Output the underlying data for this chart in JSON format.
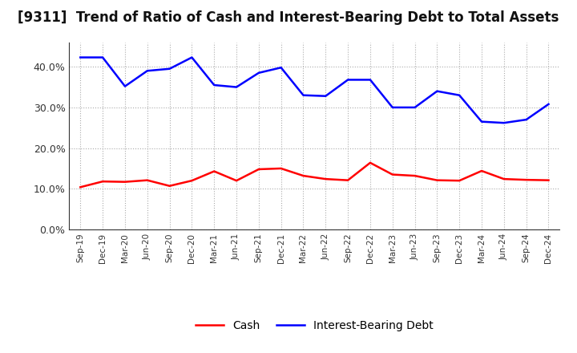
{
  "title": "[9311]  Trend of Ratio of Cash and Interest-Bearing Debt to Total Assets",
  "x_labels": [
    "Sep-19",
    "Dec-19",
    "Mar-20",
    "Jun-20",
    "Sep-20",
    "Dec-20",
    "Mar-21",
    "Jun-21",
    "Sep-21",
    "Dec-21",
    "Mar-22",
    "Jun-22",
    "Sep-22",
    "Dec-22",
    "Mar-23",
    "Jun-23",
    "Sep-23",
    "Dec-23",
    "Mar-24",
    "Jun-24",
    "Sep-24",
    "Dec-24"
  ],
  "cash": [
    0.104,
    0.118,
    0.117,
    0.121,
    0.107,
    0.12,
    0.143,
    0.12,
    0.148,
    0.15,
    0.132,
    0.124,
    0.121,
    0.164,
    0.135,
    0.132,
    0.121,
    0.12,
    0.144,
    0.124,
    0.122,
    0.121
  ],
  "interest_bearing_debt": [
    0.423,
    0.423,
    0.352,
    0.39,
    0.395,
    0.423,
    0.355,
    0.35,
    0.385,
    0.398,
    0.33,
    0.328,
    0.368,
    0.368,
    0.3,
    0.3,
    0.34,
    0.33,
    0.265,
    0.262,
    0.27,
    0.308
  ],
  "cash_color": "#ff0000",
  "debt_color": "#0000ff",
  "ylim": [
    0.0,
    0.46
  ],
  "yticks": [
    0.0,
    0.1,
    0.2,
    0.3,
    0.4
  ],
  "background_color": "#ffffff",
  "grid_color": "#aaaaaa",
  "title_fontsize": 12,
  "legend_cash": "Cash",
  "legend_debt": "Interest-Bearing Debt"
}
